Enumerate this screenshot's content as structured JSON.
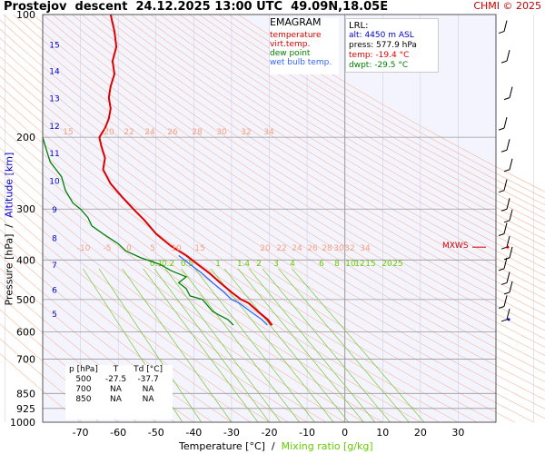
{
  "header": {
    "title": "Prostejov  descent  24.12.2025 13:00 UTC  49.09N,18.05E",
    "copyright": "CHMI © 2025"
  },
  "legend": {
    "title": "EMAGRAM",
    "items": [
      {
        "label": "temperature",
        "color": "#dd0000"
      },
      {
        "label": "virt.temp.",
        "color": "#dd0000"
      },
      {
        "label": "dew point",
        "color": "#008000"
      },
      {
        "label": "wet bulb temp.",
        "color": "#3366ff"
      }
    ]
  },
  "lrl": {
    "title": "LRL:",
    "alt": "alt: 4450 m ASL",
    "press": "press: 577.9 hPa",
    "temp": "temp: -19.4 °C",
    "dwpt": "dwpt: -29.5 °C"
  },
  "table": {
    "headers": [
      "p [hPa]",
      "T",
      "Td [°C]"
    ],
    "rows": [
      [
        "500",
        "-27.5",
        "-37.7"
      ],
      [
        "700",
        "NA",
        "NA"
      ],
      [
        "850",
        "NA",
        "NA"
      ]
    ]
  },
  "axes": {
    "xlabel_temp": "Temperature [°C]  / ",
    "xlabel_mix": " Mixing ratio [g/kg]",
    "ylabel_pressure": "Pressure [hPa]  /  ",
    "ylabel_alt": "Altitude [km]",
    "mxws": "MXWS"
  },
  "chart_data": {
    "type": "line",
    "xlim": [
      -80,
      40
    ],
    "ylim": [
      1000,
      100
    ],
    "y_scale": "log",
    "x_ticks": [
      -70,
      -60,
      -50,
      -40,
      -30,
      -20,
      -10,
      0,
      10,
      20,
      30
    ],
    "y_ticks": [
      100,
      200,
      300,
      400,
      500,
      600,
      700,
      850,
      925,
      1000
    ],
    "altitude_ticks_km": [
      {
        "label": "15",
        "p": 118
      },
      {
        "label": "14",
        "p": 137
      },
      {
        "label": "13",
        "p": 160
      },
      {
        "label": "12",
        "p": 187
      },
      {
        "label": "11",
        "p": 218
      },
      {
        "label": "10",
        "p": 255
      },
      {
        "label": "9",
        "p": 300
      },
      {
        "label": "8",
        "p": 352
      },
      {
        "label": "7",
        "p": 410
      },
      {
        "label": "6",
        "p": 472
      },
      {
        "label": "5",
        "p": 540
      }
    ],
    "mixing_ratio_labels": [
      "0.1",
      "0.2",
      "0.5",
      "1",
      "1.4",
      "2",
      "3",
      "4",
      "6",
      "8",
      "10",
      "12",
      "15",
      "20",
      "25"
    ],
    "mixing_ratio_lines": [
      {
        "w": 0.1,
        "t1000": -43
      },
      {
        "w": 0.2,
        "t1000": -38
      },
      {
        "w": 0.5,
        "t1000": -30
      },
      {
        "w": 1,
        "t1000": -23
      },
      {
        "w": 1.4,
        "t1000": -20
      },
      {
        "w": 2,
        "t1000": -17
      },
      {
        "w": 3,
        "t1000": -12
      },
      {
        "w": 4,
        "t1000": -8
      },
      {
        "w": 6,
        "t1000": -3
      },
      {
        "w": 8,
        "t1000": 1
      },
      {
        "w": 10,
        "t1000": 5
      },
      {
        "w": 12,
        "t1000": 8
      },
      {
        "w": 15,
        "t1000": 12
      },
      {
        "w": 20,
        "t1000": 17
      },
      {
        "w": 25,
        "t1000": 21
      }
    ],
    "theta_labels_upper": [
      "15",
      "20",
      "22",
      "24",
      "26",
      "28",
      "30",
      "32",
      "34"
    ],
    "theta_labels_lower": [
      "-10",
      "-5",
      "0",
      "5",
      "10",
      "15",
      "20",
      "22",
      "24",
      "26",
      "28",
      "30",
      "32",
      "34"
    ],
    "series": [
      {
        "name": "temperature",
        "color": "#dd0000",
        "points": [
          [
            -19.4,
            578
          ],
          [
            -20.5,
            560
          ],
          [
            -23,
            535
          ],
          [
            -25.5,
            510
          ],
          [
            -27.5,
            500
          ],
          [
            -30,
            480
          ],
          [
            -33,
            455
          ],
          [
            -36,
            430
          ],
          [
            -39,
            410
          ],
          [
            -42,
            390
          ],
          [
            -46,
            370
          ],
          [
            -50,
            345
          ],
          [
            -53,
            320
          ],
          [
            -56,
            300
          ],
          [
            -59,
            280
          ],
          [
            -62,
            260
          ],
          [
            -64,
            240
          ],
          [
            -63.5,
            225
          ],
          [
            -64.5,
            210
          ],
          [
            -65,
            200
          ],
          [
            -63.5,
            190
          ],
          [
            -62.5,
            180
          ],
          [
            -62,
            170
          ],
          [
            -62.5,
            160
          ],
          [
            -62,
            150
          ],
          [
            -61,
            140
          ],
          [
            -61.5,
            130
          ],
          [
            -60.5,
            120
          ],
          [
            -61,
            110
          ],
          [
            -62,
            100
          ]
        ]
      },
      {
        "name": "virt.temp.",
        "color": "#dd0000",
        "points": [
          [
            -19.2,
            578
          ],
          [
            -20.3,
            560
          ],
          [
            -22.9,
            535
          ],
          [
            -25.4,
            510
          ],
          [
            -27.4,
            500
          ],
          [
            -29.9,
            480
          ],
          [
            -32.9,
            455
          ],
          [
            -35.9,
            430
          ],
          [
            -38.9,
            410
          ],
          [
            -41.9,
            390
          ]
        ]
      },
      {
        "name": "dew point",
        "color": "#008000",
        "points": [
          [
            -29.5,
            578
          ],
          [
            -31,
            560
          ],
          [
            -33.5,
            545
          ],
          [
            -35,
            535
          ],
          [
            -37.7,
            500
          ],
          [
            -41,
            490
          ],
          [
            -42,
            470
          ],
          [
            -44,
            455
          ],
          [
            -42,
            440
          ],
          [
            -46,
            425
          ],
          [
            -49,
            410
          ],
          [
            -54,
            395
          ],
          [
            -58,
            380
          ],
          [
            -60,
            365
          ],
          [
            -64,
            345
          ],
          [
            -67,
            330
          ],
          [
            -68,
            315
          ],
          [
            -70,
            300
          ],
          [
            -72,
            290
          ],
          [
            -74,
            270
          ],
          [
            -75,
            250
          ],
          [
            -78,
            230
          ],
          [
            -79,
            215
          ],
          [
            -80,
            200
          ]
        ]
      },
      {
        "name": "wet bulb temp.",
        "color": "#3366ff",
        "points": [
          [
            -20.5,
            578
          ],
          [
            -22,
            560
          ],
          [
            -25,
            535
          ],
          [
            -28,
            510
          ],
          [
            -30,
            500
          ],
          [
            -32,
            480
          ],
          [
            -35,
            455
          ],
          [
            -38,
            430
          ],
          [
            -41,
            410
          ],
          [
            -44,
            390
          ]
        ]
      }
    ]
  }
}
